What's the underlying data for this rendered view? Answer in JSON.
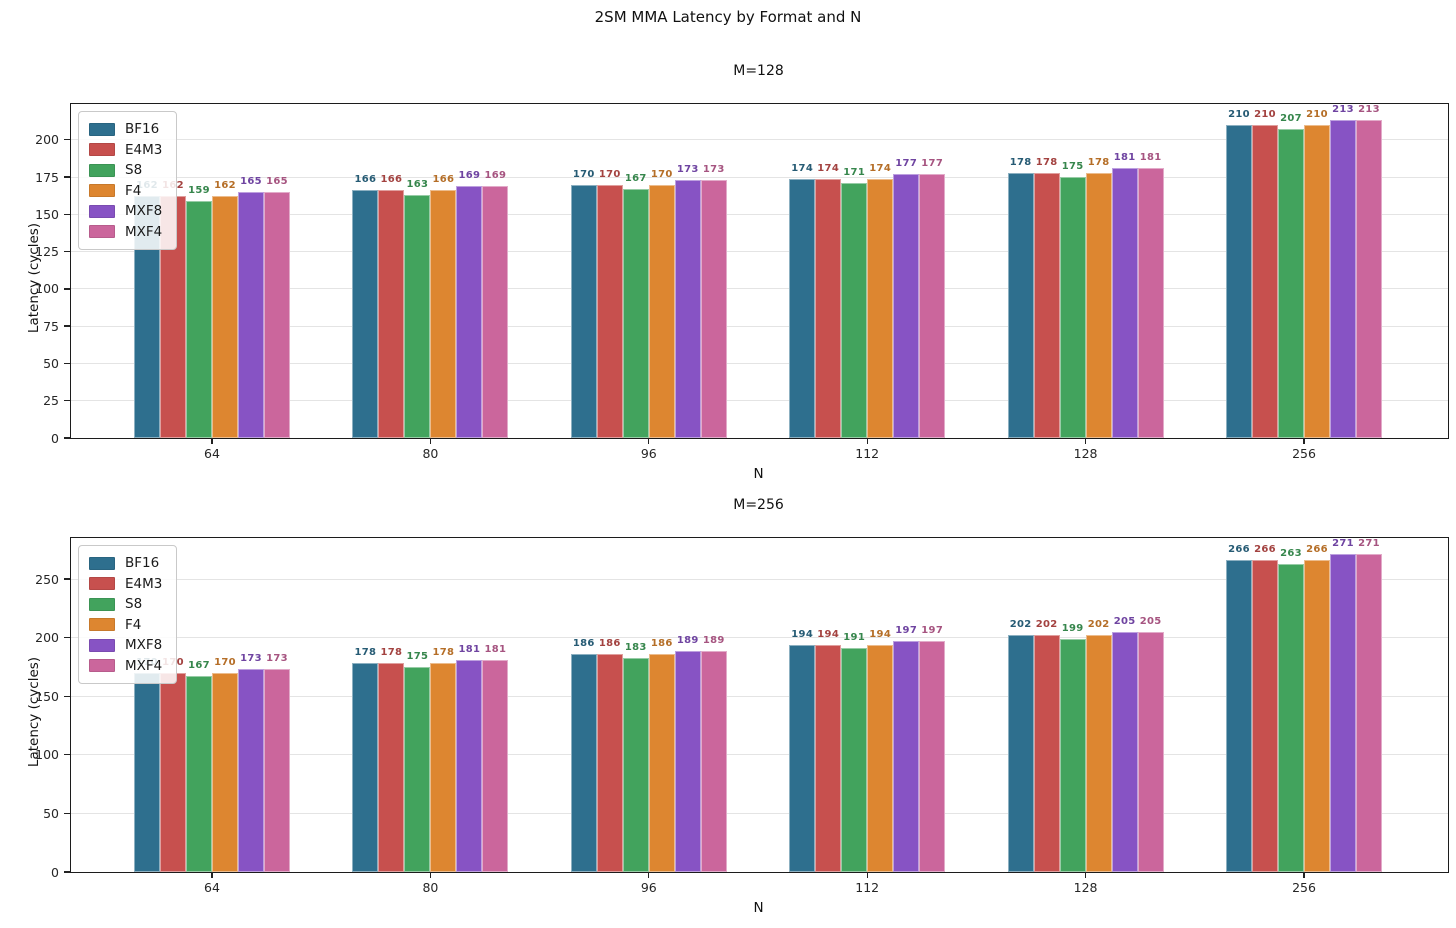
{
  "figure_title": "2SM MMA Latency by Format and N",
  "chart_data": [
    {
      "type": "bar",
      "title": "M=128",
      "xlabel": "N",
      "ylabel": "Latency (cycles)",
      "categories": [
        "64",
        "80",
        "96",
        "112",
        "128",
        "256"
      ],
      "series": [
        {
          "name": "BF16",
          "color": "#2e6f8e",
          "values": [
            162,
            166,
            170,
            174,
            178,
            210
          ]
        },
        {
          "name": "E4M3",
          "color": "#c7504e",
          "values": [
            162,
            166,
            170,
            174,
            178,
            210
          ]
        },
        {
          "name": "S8",
          "color": "#42a35d",
          "values": [
            159,
            163,
            167,
            171,
            175,
            207
          ]
        },
        {
          "name": "F4",
          "color": "#dd8630",
          "values": [
            162,
            166,
            170,
            174,
            178,
            210
          ]
        },
        {
          "name": "MXF8",
          "color": "#8753c4",
          "values": [
            165,
            169,
            173,
            177,
            181,
            213
          ]
        },
        {
          "name": "MXF4",
          "color": "#cb669c",
          "values": [
            165,
            169,
            173,
            177,
            181,
            213
          ]
        }
      ],
      "ylim": [
        0,
        224
      ],
      "yticks": [
        0,
        25,
        50,
        75,
        100,
        125,
        150,
        175,
        200
      ],
      "grid": true,
      "legend_position": "upper left",
      "bar_labels": true
    },
    {
      "type": "bar",
      "title": "M=256",
      "xlabel": "N",
      "ylabel": "Latency (cycles)",
      "categories": [
        "64",
        "80",
        "96",
        "112",
        "128",
        "256"
      ],
      "series": [
        {
          "name": "BF16",
          "color": "#2e6f8e",
          "values": [
            170,
            178,
            186,
            194,
            202,
            266
          ]
        },
        {
          "name": "E4M3",
          "color": "#c7504e",
          "values": [
            170,
            178,
            186,
            194,
            202,
            266
          ]
        },
        {
          "name": "S8",
          "color": "#42a35d",
          "values": [
            167,
            175,
            183,
            191,
            199,
            263
          ]
        },
        {
          "name": "F4",
          "color": "#dd8630",
          "values": [
            170,
            178,
            186,
            194,
            202,
            266
          ]
        },
        {
          "name": "MXF8",
          "color": "#8753c4",
          "values": [
            173,
            181,
            189,
            197,
            205,
            271
          ]
        },
        {
          "name": "MXF4",
          "color": "#cb669c",
          "values": [
            173,
            181,
            189,
            197,
            205,
            271
          ]
        }
      ],
      "ylim": [
        0,
        285
      ],
      "yticks": [
        0,
        50,
        100,
        150,
        200,
        250
      ],
      "grid": true,
      "legend_position": "upper left",
      "bar_labels": true
    }
  ]
}
